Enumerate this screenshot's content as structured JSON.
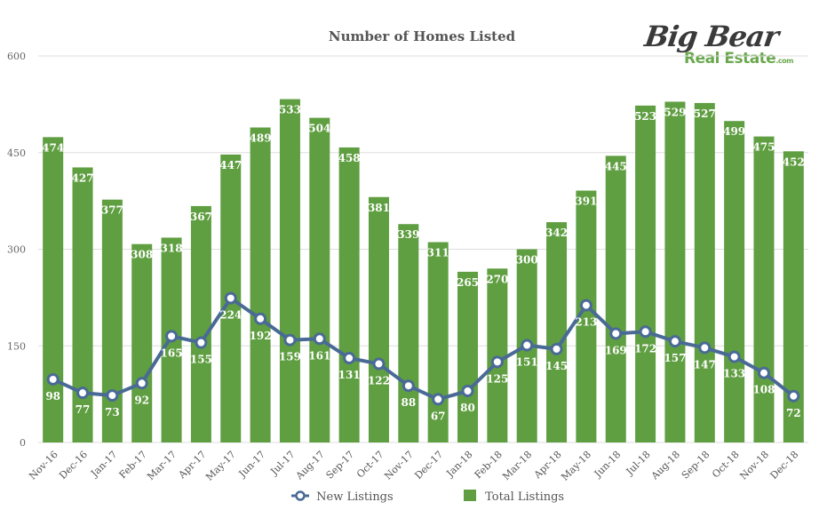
{
  "logo": {
    "line1": "Big Bear",
    "line2": "Real Estate",
    "suffix": ".com"
  },
  "chart_data": {
    "type": "bar",
    "title": "Number of Homes Listed",
    "categories": [
      "Nov-16",
      "Dec-16",
      "Jan-17",
      "Feb-17",
      "Mar-17",
      "Apr-17",
      "May-17",
      "Jun-17",
      "Jul-17",
      "Aug-17",
      "Sep-17",
      "Oct-17",
      "Nov-17",
      "Dec-17",
      "Jan-18",
      "Feb-18",
      "Mar-18",
      "Apr-18",
      "May-18",
      "Jun-18",
      "Jul-18",
      "Aug-18",
      "Sep-18",
      "Oct-18",
      "Nov-18",
      "Dec-18"
    ],
    "series": [
      {
        "name": "Total Listings",
        "type": "bar",
        "color": "#5f9e41",
        "values": [
          474,
          427,
          377,
          308,
          318,
          367,
          447,
          489,
          533,
          504,
          458,
          381,
          339,
          311,
          265,
          270,
          300,
          342,
          391,
          445,
          523,
          529,
          527,
          499,
          475,
          452
        ]
      },
      {
        "name": "New Listings",
        "type": "line",
        "color": "#4a6a96",
        "values": [
          98,
          77,
          73,
          92,
          165,
          155,
          224,
          192,
          159,
          161,
          131,
          122,
          88,
          67,
          80,
          125,
          151,
          145,
          213,
          169,
          172,
          157,
          147,
          133,
          108,
          72
        ]
      }
    ],
    "yticks": [
      0,
      150,
      300,
      450,
      600
    ],
    "ylim": [
      0,
      600
    ],
    "grid": true,
    "legend": "bottom"
  }
}
